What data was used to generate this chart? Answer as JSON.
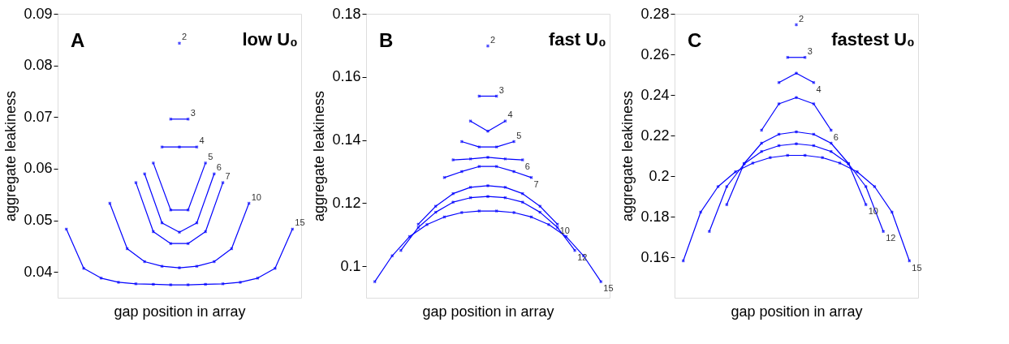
{
  "chart_data": [
    {
      "type": "line",
      "xlabel": "gap position in array",
      "ylabel": "aggregate leakiness",
      "annotations": [
        "A",
        "low U₀"
      ],
      "marker": "cross",
      "grid": false,
      "tick_labels": "y",
      "categories": [
        null,
        null,
        null,
        null,
        null,
        null,
        null,
        null,
        null,
        null,
        null,
        null,
        null,
        null,
        null,
        null,
        null,
        null,
        null,
        null,
        null,
        null,
        null,
        null,
        null,
        null,
        null
      ],
      "ylim": [
        0.035,
        0.09
      ],
      "yticks": [
        0.04,
        0.05,
        0.06,
        0.07,
        0.08,
        0.09
      ],
      "series": [
        {
          "name": "2",
          "color": "#0000ff",
          "values": [
            null,
            null,
            null,
            null,
            null,
            null,
            null,
            null,
            null,
            null,
            null,
            null,
            null,
            0.0843,
            null,
            null,
            null,
            null,
            null,
            null,
            null,
            null,
            null,
            null,
            null,
            null,
            null
          ]
        },
        {
          "name": "3",
          "color": "#0000ff",
          "values": [
            null,
            null,
            null,
            null,
            null,
            null,
            null,
            null,
            null,
            null,
            null,
            null,
            0.0696,
            null,
            0.0696,
            null,
            null,
            null,
            null,
            null,
            null,
            null,
            null,
            null,
            null,
            null,
            null
          ]
        },
        {
          "name": "4",
          "color": "#0000ff",
          "values": [
            null,
            null,
            null,
            null,
            null,
            null,
            null,
            null,
            null,
            null,
            null,
            0.0642,
            null,
            0.0642,
            null,
            0.0642,
            null,
            null,
            null,
            null,
            null,
            null,
            null,
            null,
            null,
            null,
            null
          ]
        },
        {
          "name": "5",
          "color": "#0000ff",
          "values": [
            null,
            null,
            null,
            null,
            null,
            null,
            null,
            null,
            null,
            null,
            0.0611,
            null,
            0.052,
            null,
            0.052,
            null,
            0.0611,
            null,
            null,
            null,
            null,
            null,
            null,
            null,
            null,
            null,
            null
          ]
        },
        {
          "name": "6",
          "color": "#0000ff",
          "values": [
            null,
            null,
            null,
            null,
            null,
            null,
            null,
            null,
            null,
            0.059,
            null,
            0.0495,
            null,
            0.0477,
            null,
            0.0495,
            null,
            0.059,
            null,
            null,
            null,
            null,
            null,
            null,
            null,
            null,
            null
          ]
        },
        {
          "name": "7",
          "color": "#0000ff",
          "values": [
            null,
            null,
            null,
            null,
            null,
            null,
            null,
            null,
            0.0573,
            null,
            0.0478,
            null,
            0.0455,
            null,
            0.0455,
            null,
            0.0478,
            null,
            0.0573,
            null,
            null,
            null,
            null,
            null,
            null,
            null,
            null
          ]
        },
        {
          "name": "10",
          "color": "#0000ff",
          "values": [
            null,
            null,
            null,
            null,
            null,
            0.0533,
            null,
            0.0445,
            null,
            0.042,
            null,
            0.0411,
            null,
            0.0408,
            null,
            0.0411,
            null,
            0.042,
            null,
            0.0445,
            null,
            0.0533,
            null,
            null,
            null,
            null,
            null
          ]
        },
        {
          "name": "15",
          "color": "#0000ff",
          "values": [
            0.0483,
            null,
            0.0407,
            null,
            0.0388,
            null,
            0.038,
            null,
            0.0377,
            null,
            0.0376,
            null,
            0.0375,
            null,
            0.0375,
            null,
            0.0376,
            null,
            0.0377,
            null,
            0.038,
            null,
            0.0388,
            null,
            0.0407,
            null,
            0.0483
          ]
        }
      ]
    },
    {
      "type": "line",
      "xlabel": "gap position in array",
      "ylabel": "aggregate leakiness",
      "annotations": [
        "B",
        "fast U₀"
      ],
      "marker": "cross",
      "grid": false,
      "tick_labels": "y",
      "categories": [
        null,
        null,
        null,
        null,
        null,
        null,
        null,
        null,
        null,
        null,
        null,
        null,
        null,
        null,
        null,
        null,
        null,
        null,
        null,
        null,
        null,
        null,
        null,
        null,
        null,
        null,
        null
      ],
      "ylim": [
        0.09,
        0.18
      ],
      "yticks": [
        0.1,
        0.12,
        0.14,
        0.16,
        0.18
      ],
      "series": [
        {
          "name": "2",
          "color": "#0000ff",
          "values": [
            null,
            null,
            null,
            null,
            null,
            null,
            null,
            null,
            null,
            null,
            null,
            null,
            null,
            0.1698,
            null,
            null,
            null,
            null,
            null,
            null,
            null,
            null,
            null,
            null,
            null,
            null,
            null
          ]
        },
        {
          "name": "3",
          "color": "#0000ff",
          "values": [
            null,
            null,
            null,
            null,
            null,
            null,
            null,
            null,
            null,
            null,
            null,
            null,
            0.1539,
            null,
            0.1539,
            null,
            null,
            null,
            null,
            null,
            null,
            null,
            null,
            null,
            null,
            null,
            null
          ]
        },
        {
          "name": "4",
          "color": "#0000ff",
          "values": [
            null,
            null,
            null,
            null,
            null,
            null,
            null,
            null,
            null,
            null,
            null,
            0.146,
            null,
            0.1428,
            null,
            0.146,
            null,
            null,
            null,
            null,
            null,
            null,
            null,
            null,
            null,
            null,
            null
          ]
        },
        {
          "name": "5",
          "color": "#0000ff",
          "values": [
            null,
            null,
            null,
            null,
            null,
            null,
            null,
            null,
            null,
            null,
            0.1395,
            null,
            0.1378,
            null,
            0.1378,
            null,
            0.1395,
            null,
            null,
            null,
            null,
            null,
            null,
            null,
            null,
            null,
            null
          ]
        },
        {
          "name": "6",
          "color": "#0000ff",
          "values": [
            null,
            null,
            null,
            null,
            null,
            null,
            null,
            null,
            null,
            0.1337,
            null,
            0.134,
            null,
            0.1345,
            null,
            0.134,
            null,
            0.1337,
            null,
            null,
            null,
            null,
            null,
            null,
            null,
            null,
            null
          ]
        },
        {
          "name": "7",
          "color": "#0000ff",
          "values": [
            null,
            null,
            null,
            null,
            null,
            null,
            null,
            null,
            0.1281,
            null,
            0.13,
            null,
            0.1316,
            null,
            0.1316,
            null,
            0.13,
            null,
            0.1281,
            null,
            null,
            null,
            null,
            null,
            null,
            null,
            null
          ]
        },
        {
          "name": "10",
          "color": "#0000ff",
          "values": [
            null,
            null,
            null,
            null,
            null,
            0.1133,
            null,
            0.119,
            null,
            0.123,
            null,
            0.125,
            null,
            0.1255,
            null,
            0.125,
            null,
            0.123,
            null,
            0.119,
            null,
            0.1133,
            null,
            null,
            null,
            null,
            null
          ]
        },
        {
          "name": "12",
          "color": "#0000ff",
          "values": [
            null,
            null,
            null,
            0.105,
            null,
            0.1123,
            null,
            0.1171,
            null,
            0.1203,
            null,
            0.1217,
            null,
            0.1221,
            null,
            0.1217,
            null,
            0.1203,
            null,
            0.1171,
            null,
            0.1123,
            null,
            0.105,
            null,
            null,
            null
          ]
        },
        {
          "name": "15",
          "color": "#0000ff",
          "values": [
            0.0951,
            null,
            0.1033,
            null,
            0.1094,
            null,
            0.1132,
            null,
            0.1156,
            null,
            0.117,
            null,
            0.1175,
            null,
            0.1175,
            null,
            0.117,
            null,
            0.1156,
            null,
            0.1132,
            null,
            0.1094,
            null,
            0.1033,
            null,
            0.0951
          ]
        }
      ]
    },
    {
      "type": "line",
      "xlabel": "gap position in array",
      "ylabel": "aggregate leakiness",
      "annotations": [
        "C",
        "fastest U₀"
      ],
      "marker": "cross",
      "grid": false,
      "tick_labels": "y",
      "categories": [
        null,
        null,
        null,
        null,
        null,
        null,
        null,
        null,
        null,
        null,
        null,
        null,
        null,
        null,
        null,
        null,
        null,
        null,
        null,
        null,
        null,
        null,
        null,
        null,
        null,
        null,
        null
      ],
      "ylim": [
        0.14,
        0.28
      ],
      "yticks": [
        0.16,
        0.18,
        0.2,
        0.22,
        0.24,
        0.26,
        0.28
      ],
      "series": [
        {
          "name": "2",
          "color": "#0000ff",
          "values": [
            null,
            null,
            null,
            null,
            null,
            null,
            null,
            null,
            null,
            null,
            null,
            null,
            null,
            0.2746,
            null,
            null,
            null,
            null,
            null,
            null,
            null,
            null,
            null,
            null,
            null,
            null,
            null
          ]
        },
        {
          "name": "3",
          "color": "#0000ff",
          "values": [
            null,
            null,
            null,
            null,
            null,
            null,
            null,
            null,
            null,
            null,
            null,
            null,
            0.2585,
            null,
            0.2585,
            null,
            null,
            null,
            null,
            null,
            null,
            null,
            null,
            null,
            null,
            null,
            null
          ]
        },
        {
          "name": "4",
          "color": "#0000ff",
          "values": [
            null,
            null,
            null,
            null,
            null,
            null,
            null,
            null,
            null,
            null,
            null,
            0.2461,
            null,
            0.2507,
            null,
            0.2461,
            null,
            null,
            null,
            null,
            null,
            null,
            null,
            null,
            null,
            null,
            null
          ]
        },
        {
          "name": "6",
          "color": "#0000ff",
          "values": [
            null,
            null,
            null,
            null,
            null,
            null,
            null,
            null,
            null,
            0.2226,
            null,
            0.2356,
            null,
            0.2387,
            null,
            0.2356,
            null,
            0.2226,
            null,
            null,
            null,
            null,
            null,
            null,
            null,
            null,
            null
          ]
        },
        {
          "name": "10",
          "color": "#0000ff",
          "values": [
            null,
            null,
            null,
            null,
            null,
            0.1859,
            null,
            0.2062,
            null,
            0.2162,
            null,
            0.2206,
            null,
            0.2218,
            null,
            0.2206,
            null,
            0.2162,
            null,
            0.2062,
            null,
            0.1859,
            null,
            null,
            null,
            null,
            null
          ]
        },
        {
          "name": "12",
          "color": "#0000ff",
          "values": [
            null,
            null,
            null,
            0.1727,
            null,
            0.1948,
            null,
            0.206,
            null,
            0.2121,
            null,
            0.215,
            null,
            0.2159,
            null,
            0.215,
            null,
            0.2121,
            null,
            0.206,
            null,
            0.1948,
            null,
            0.1727,
            null,
            null,
            null
          ]
        },
        {
          "name": "15",
          "color": "#0000ff",
          "values": [
            0.1582,
            null,
            0.1822,
            null,
            0.1948,
            null,
            0.2021,
            null,
            0.2064,
            null,
            0.2091,
            null,
            0.2102,
            null,
            0.2102,
            null,
            0.2091,
            null,
            0.2064,
            null,
            0.2021,
            null,
            0.1948,
            null,
            0.1822,
            null,
            0.1582
          ]
        }
      ]
    }
  ]
}
